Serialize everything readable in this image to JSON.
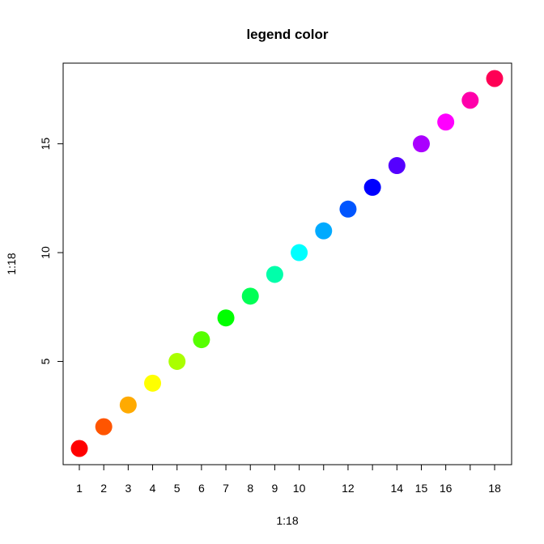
{
  "chart_data": {
    "type": "scatter",
    "title": "legend color",
    "xlabel": "1:18",
    "ylabel": "1:18",
    "xlim": [
      1,
      18
    ],
    "ylim": [
      1,
      18
    ],
    "x_ticks": [
      1,
      2,
      3,
      4,
      5,
      6,
      7,
      8,
      9,
      10,
      11,
      12,
      13,
      14,
      15,
      16,
      17,
      18
    ],
    "x_tick_labels": [
      "1",
      "2",
      "3",
      "4",
      "5",
      "6",
      "7",
      "8",
      "9",
      "10",
      "",
      "12",
      "",
      "14",
      "15",
      "16",
      "",
      "18"
    ],
    "y_ticks": [
      5,
      10,
      15
    ],
    "y_tick_labels": [
      "5",
      "10",
      "15"
    ],
    "grid": false,
    "legend": "none",
    "series": [
      {
        "x": [
          1,
          2,
          3,
          4,
          5,
          6,
          7,
          8,
          9,
          10,
          11,
          12,
          13,
          14,
          15,
          16,
          17,
          18
        ],
        "y": [
          1,
          2,
          3,
          4,
          5,
          6,
          7,
          8,
          9,
          10,
          11,
          12,
          13,
          14,
          15,
          16,
          17,
          18
        ],
        "colors": [
          "#FF0000",
          "#FF5500",
          "#FFAA00",
          "#FFFF00",
          "#AAFF00",
          "#55FF00",
          "#00FF00",
          "#00FF55",
          "#00FFAA",
          "#00FFFF",
          "#00AAFF",
          "#0055FF",
          "#0000FF",
          "#5500FF",
          "#AA00FF",
          "#FF00FF",
          "#FF00AA",
          "#FF0055"
        ]
      }
    ]
  }
}
